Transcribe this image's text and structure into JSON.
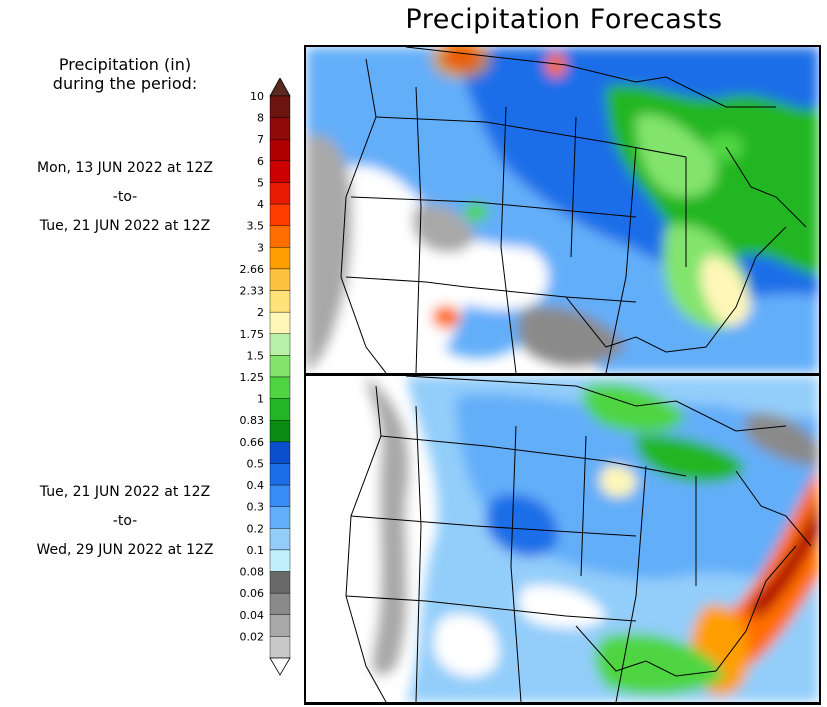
{
  "title": "Precipitation Forecasts",
  "legend_heading": [
    "Precipitation (in)",
    "during the period:"
  ],
  "periods": [
    {
      "start": "Mon, 13 JUN 2022 at 12Z",
      "sep": "-to-",
      "end": "Tue, 21 JUN 2022 at 12Z"
    },
    {
      "start": "Tue, 21 JUN 2022 at 12Z",
      "sep": "-to-",
      "end": "Wed, 29 JUN 2022 at 12Z"
    }
  ],
  "scale": [
    {
      "label": "10",
      "color": "#6b1410"
    },
    {
      "label": "8",
      "color": "#8f0b0b"
    },
    {
      "label": "7",
      "color": "#ae0000"
    },
    {
      "label": "6",
      "color": "#cc0000"
    },
    {
      "label": "5",
      "color": "#e61b00"
    },
    {
      "label": "4",
      "color": "#ff3d00"
    },
    {
      "label": "3.5",
      "color": "#ff6e00"
    },
    {
      "label": "3",
      "color": "#ff9e00"
    },
    {
      "label": "2.66",
      "color": "#ffc23e"
    },
    {
      "label": "2.33",
      "color": "#ffe27a"
    },
    {
      "label": "2",
      "color": "#fff7b8"
    },
    {
      "label": "1.75",
      "color": "#b9f0a8"
    },
    {
      "label": "1.5",
      "color": "#82e46d"
    },
    {
      "label": "1.25",
      "color": "#4fd542"
    },
    {
      "label": "1",
      "color": "#23b624"
    },
    {
      "label": "0.83",
      "color": "#0a8c12"
    },
    {
      "label": "0.66",
      "color": "#0c4fcc"
    },
    {
      "label": "0.5",
      "color": "#1c6ee8"
    },
    {
      "label": "0.4",
      "color": "#3a8df5"
    },
    {
      "label": "0.3",
      "color": "#64aef9"
    },
    {
      "label": "0.2",
      "color": "#93cdfa"
    },
    {
      "label": "0.1",
      "color": "#bff0fc"
    },
    {
      "label": "0.08",
      "color": "#6a6a6a"
    },
    {
      "label": "0.06",
      "color": "#8a8a8a"
    },
    {
      "label": "0.04",
      "color": "#a8a8a8"
    },
    {
      "label": "0.02",
      "color": "#c8c8c8"
    }
  ],
  "overflow_color": "#5a2a22",
  "underflow_color": "#ffffff"
}
